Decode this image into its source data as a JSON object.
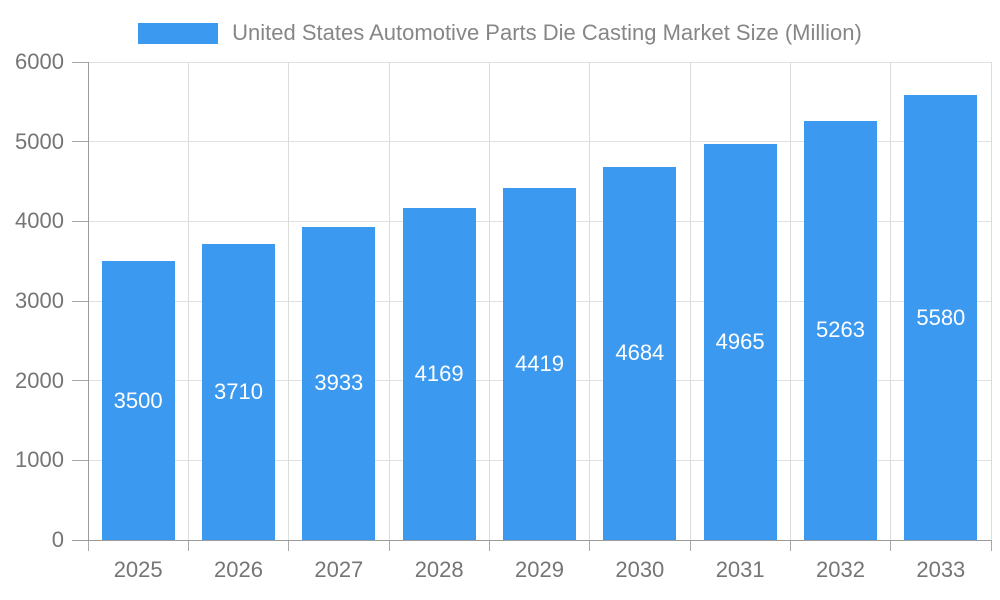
{
  "chart_data": {
    "type": "bar",
    "title": "United States Automotive Parts Die Casting Market Size (Million)",
    "categories": [
      "2025",
      "2026",
      "2027",
      "2028",
      "2029",
      "2030",
      "2031",
      "2032",
      "2033"
    ],
    "values": [
      3500,
      3710,
      3933,
      4169,
      4419,
      4684,
      4965,
      5263,
      5580
    ],
    "xlabel": "",
    "ylabel": "",
    "ylim": [
      0,
      6000
    ],
    "yticks": [
      0,
      1000,
      2000,
      3000,
      4000,
      5000,
      6000
    ],
    "grid": "on",
    "legend_position": "top-center",
    "value_labels": "inside-center"
  },
  "colors": {
    "bar": "#3B99F0",
    "bar_label": "#FFFFFF",
    "axis": "#9B9B9B",
    "grid_h": "#E0E0E0",
    "grid_v": "#DCDCDC",
    "tick": "#A8A8A8",
    "tick_text": "#757575",
    "title_text": "#868686",
    "background": "#FFFFFF"
  }
}
